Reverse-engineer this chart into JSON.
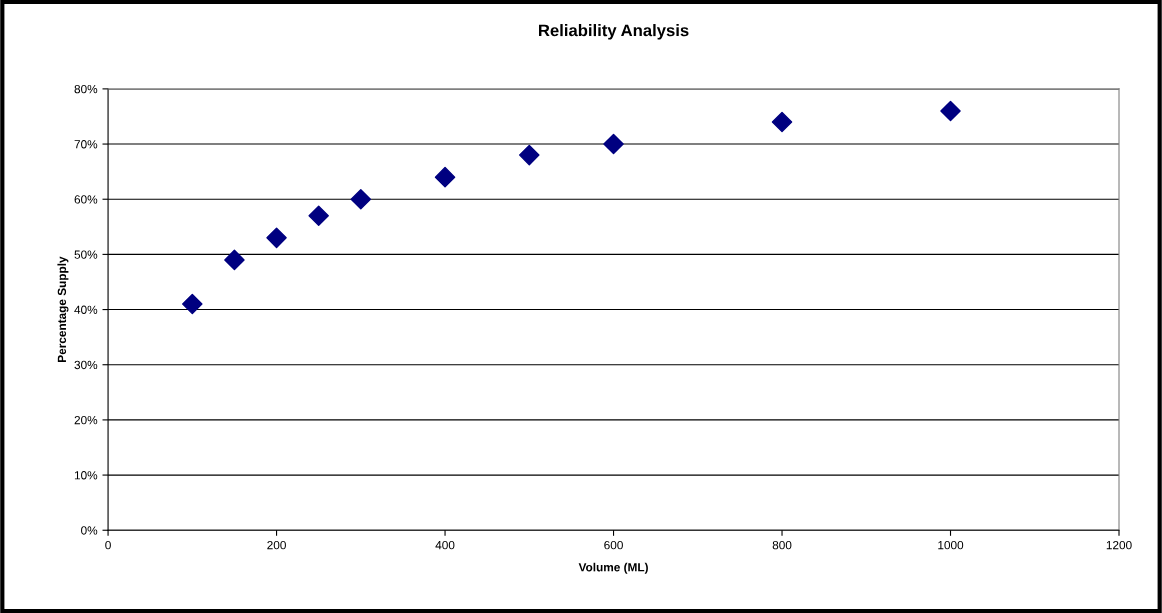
{
  "chart_data": {
    "type": "scatter",
    "title": "Reliability Analysis",
    "xlabel": "Volume (ML)",
    "ylabel": "Percentage Supply",
    "x": [
      100,
      150,
      200,
      250,
      300,
      400,
      500,
      600,
      800,
      1000
    ],
    "series": [
      {
        "color": "#000080",
        "values": [
          41,
          49,
          53,
          57,
          60,
          64,
          68,
          70,
          74,
          76
        ]
      }
    ],
    "xlim": [
      0,
      1200
    ],
    "xticks": [
      0,
      200,
      400,
      600,
      800,
      1000,
      1200
    ],
    "ylim": [
      0,
      80
    ],
    "yticks": [
      {
        "value": 0,
        "label": "0%"
      },
      {
        "value": 10,
        "label": "10%"
      },
      {
        "value": 20,
        "label": "20%"
      },
      {
        "value": 30,
        "label": "30%"
      },
      {
        "value": 40,
        "label": "40%"
      },
      {
        "value": 50,
        "label": "50%"
      },
      {
        "value": 60,
        "label": "60%"
      },
      {
        "value": 70,
        "label": "70%"
      },
      {
        "value": 80,
        "label": "80%"
      }
    ],
    "grid": "y",
    "marker": "diamond",
    "legend": false
  }
}
